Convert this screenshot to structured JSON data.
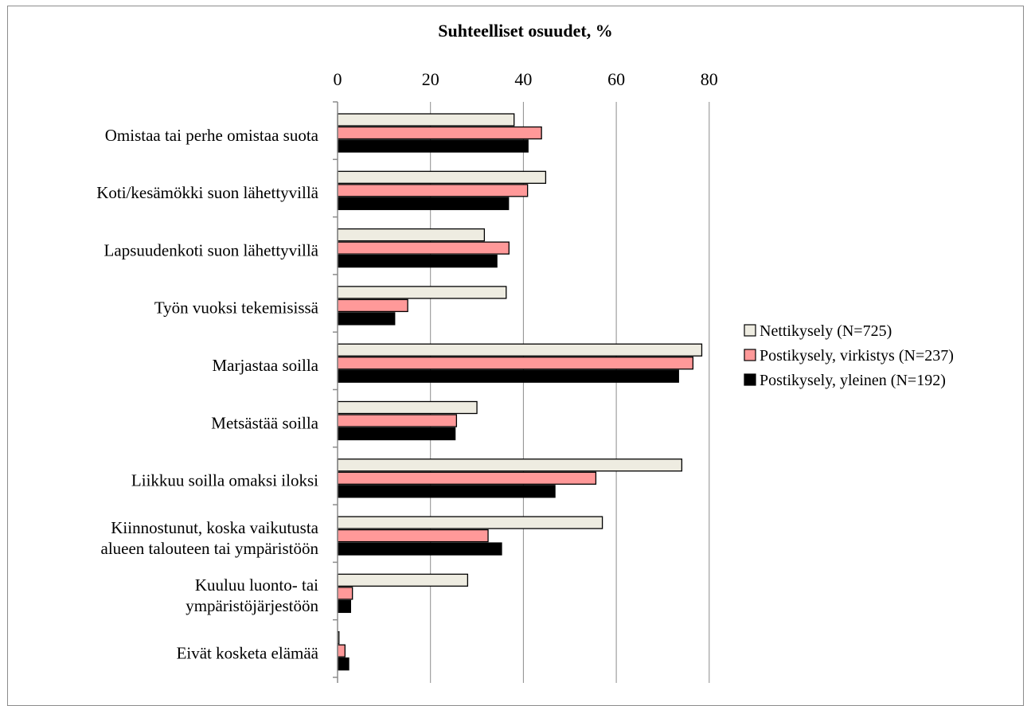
{
  "chart_data": {
    "type": "bar",
    "orientation": "horizontal",
    "title": "Suhteelliset osuudet, %",
    "xlabel": "",
    "ylabel": "",
    "xlim": [
      0,
      80
    ],
    "x_ticks": [
      "0",
      "20",
      "40",
      "60",
      "80"
    ],
    "x_axis_position": "top",
    "grid": "vertical",
    "legend_position": "right",
    "categories": [
      [
        "Omistaa tai perhe omistaa suota"
      ],
      [
        "Koti/kesämökki suon lähettyvillä"
      ],
      [
        "Lapsuudenkoti suon lähettyvillä"
      ],
      [
        "Työn vuoksi tekemisissä"
      ],
      [
        "Marjastaa soilla"
      ],
      [
        "Metsästää soilla"
      ],
      [
        "Liikkuu soilla omaksi iloksi"
      ],
      [
        "Kiinnostunut, koska vaikutusta",
        "alueen talouteen tai ympäristöön"
      ],
      [
        "Kuuluu luonto- tai",
        "ympäristöjärjestöön"
      ],
      [
        "Eivät kosketa elämää"
      ]
    ],
    "series": [
      {
        "name": "Nettikysely (N=725)",
        "color": "#eeece1",
        "values": [
          38,
          44.8,
          31.6,
          36.3,
          78.4,
          30,
          74.1,
          57,
          28,
          0.3
        ]
      },
      {
        "name": "Postikysely, virkistys (N=237)",
        "color": "#ff9999",
        "values": [
          43.9,
          40.9,
          36.9,
          15.1,
          76.5,
          25.6,
          55.6,
          32.4,
          3.2,
          1.6
        ]
      },
      {
        "name": "Postikysely, yleinen (N=192)",
        "color": "#000000",
        "values": [
          41,
          36.8,
          34.3,
          12.3,
          73.4,
          25.3,
          46.8,
          35.3,
          2.8,
          2.4
        ]
      }
    ]
  }
}
